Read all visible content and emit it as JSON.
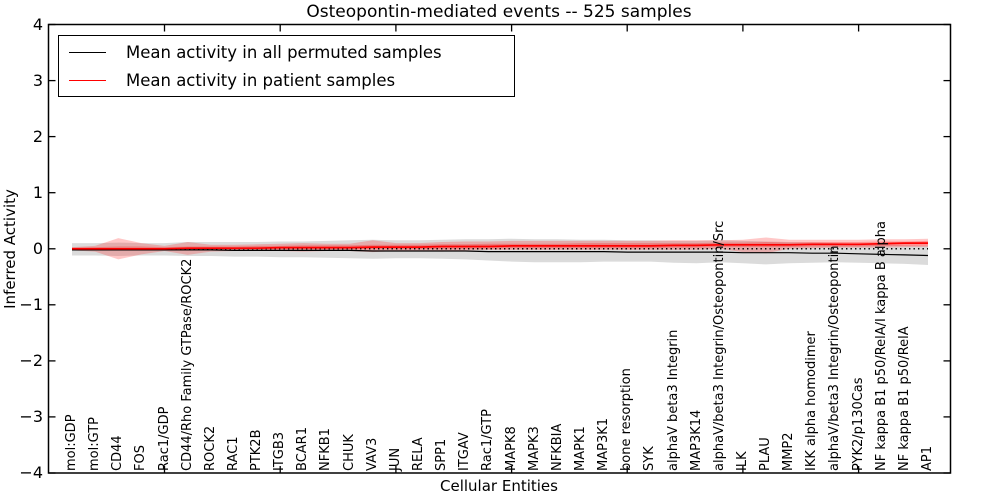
{
  "chart_data": {
    "type": "line",
    "title": "Osteopontin-mediated events -- 525 samples",
    "xlabel": "Cellular Entities",
    "ylabel": "Inferred Activity",
    "ylim": [
      -4,
      4
    ],
    "yticks": [
      4,
      3,
      2,
      1,
      0,
      -1,
      -2,
      -3,
      -4
    ],
    "ytick_labels": [
      "4",
      "3",
      "2",
      "1",
      "0",
      "−1",
      "−2",
      "−3",
      "−4"
    ],
    "xtick_positions": [
      5,
      10,
      15,
      20,
      25,
      30,
      35
    ],
    "grid": false,
    "legend_position": "upper left",
    "categories": [
      "mol:GDP",
      "mol:GTP",
      "CD44",
      "FOS",
      "Rac1/GDP",
      "CD44/Rho Family GTPase/ROCK2",
      "ROCK2",
      "RAC1",
      "PTK2B",
      "ITGB3",
      "BCAR1",
      "NFKB1",
      "CHUK",
      "VAV3",
      "JUN",
      "RELA",
      "SPP1",
      "ITGAV",
      "Rac1/GTP",
      "MAPK8",
      "MAPK3",
      "NFKBIA",
      "MAPK1",
      "MAP3K1",
      "bone resorption",
      "SYK",
      "alphaV beta3 Integrin",
      "MAP3K14",
      "alphaV/beta3 Integrin/Osteopontin/Src",
      "ILK",
      "PLAU",
      "MMP2",
      "IKK alpha homodimer",
      "alphaV/beta3 Integrin/Osteopontin",
      "PYK2/p130Cas",
      "NF kappa B1 p50/RelA/I kappa B alpha",
      "NF kappa B1 p50/RelA",
      "AP1"
    ],
    "baseline": {
      "value": 0,
      "style": "dotted",
      "color": "#000000"
    },
    "series": [
      {
        "name": "Mean activity in all permuted samples",
        "color": "#000000",
        "values": [
          -0.02,
          -0.02,
          -0.02,
          -0.02,
          -0.02,
          -0.02,
          -0.02,
          -0.03,
          -0.03,
          -0.03,
          -0.03,
          -0.03,
          -0.03,
          -0.04,
          -0.04,
          -0.04,
          -0.04,
          -0.04,
          -0.05,
          -0.05,
          -0.05,
          -0.05,
          -0.05,
          -0.05,
          -0.06,
          -0.06,
          -0.06,
          -0.06,
          -0.06,
          -0.07,
          -0.07,
          -0.07,
          -0.08,
          -0.08,
          -0.09,
          -0.1,
          -0.11,
          -0.12
        ]
      },
      {
        "name": "Mean activity in patient samples",
        "color": "#ff0000",
        "values": [
          0.0,
          0.0,
          0.0,
          0.0,
          0.0,
          0.01,
          0.01,
          0.01,
          0.01,
          0.02,
          0.02,
          0.02,
          0.02,
          0.03,
          0.03,
          0.03,
          0.04,
          0.04,
          0.04,
          0.05,
          0.05,
          0.05,
          0.05,
          0.05,
          0.05,
          0.05,
          0.06,
          0.06,
          0.07,
          0.07,
          0.07,
          0.07,
          0.08,
          0.08,
          0.08,
          0.09,
          0.1,
          0.1
        ]
      }
    ],
    "bands": [
      {
        "name": "permuted-samples-activity-range",
        "color": "rgba(0,0,0,0.14)",
        "lo": [
          -0.12,
          -0.12,
          -0.13,
          -0.12,
          -0.12,
          -0.13,
          -0.13,
          -0.14,
          -0.14,
          -0.15,
          -0.15,
          -0.16,
          -0.17,
          -0.18,
          -0.17,
          -0.17,
          -0.18,
          -0.19,
          -0.21,
          -0.23,
          -0.24,
          -0.24,
          -0.24,
          -0.23,
          -0.23,
          -0.23,
          -0.25,
          -0.26,
          -0.24,
          -0.26,
          -0.28,
          -0.26,
          -0.25,
          -0.24,
          -0.25,
          -0.26,
          -0.27,
          -0.29
        ],
        "hi": [
          0.1,
          0.1,
          0.11,
          0.1,
          0.1,
          0.12,
          0.12,
          0.12,
          0.12,
          0.13,
          0.13,
          0.14,
          0.15,
          0.16,
          0.15,
          0.15,
          0.16,
          0.17,
          0.17,
          0.18,
          0.17,
          0.17,
          0.16,
          0.16,
          0.15,
          0.15,
          0.14,
          0.14,
          0.15,
          0.14,
          0.13,
          0.12,
          0.11,
          0.1,
          0.09,
          0.08,
          0.06,
          0.05
        ]
      },
      {
        "name": "patient-samples-activity-range-outer",
        "color": "rgba(255,0,0,0.22)",
        "lo": [
          -0.03,
          -0.05,
          -0.19,
          -0.1,
          -0.04,
          -0.11,
          -0.05,
          -0.04,
          -0.04,
          -0.04,
          -0.05,
          -0.04,
          -0.04,
          -0.06,
          -0.04,
          -0.04,
          -0.05,
          -0.03,
          -0.02,
          -0.02,
          -0.02,
          -0.02,
          -0.02,
          -0.02,
          -0.02,
          -0.02,
          -0.02,
          -0.02,
          0.0,
          -0.06,
          -0.08,
          0.0,
          0.01,
          0.02,
          0.02,
          0.02,
          0.03,
          0.03
        ],
        "hi": [
          0.03,
          0.05,
          0.19,
          0.1,
          0.05,
          0.12,
          0.07,
          0.07,
          0.08,
          0.09,
          0.1,
          0.09,
          0.09,
          0.15,
          0.1,
          0.1,
          0.12,
          0.13,
          0.13,
          0.14,
          0.14,
          0.14,
          0.14,
          0.14,
          0.14,
          0.14,
          0.15,
          0.15,
          0.15,
          0.16,
          0.2,
          0.16,
          0.16,
          0.16,
          0.16,
          0.17,
          0.17,
          0.18
        ]
      },
      {
        "name": "patient-samples-activity-range-inner",
        "color": "rgba(255,0,0,0.26)",
        "lo": [
          -0.02,
          -0.02,
          -0.03,
          -0.03,
          -0.02,
          -0.02,
          -0.02,
          -0.02,
          -0.02,
          -0.01,
          -0.01,
          -0.01,
          -0.01,
          -0.01,
          -0.01,
          -0.01,
          0.0,
          0.0,
          0.0,
          0.01,
          0.01,
          0.01,
          0.01,
          0.01,
          0.01,
          0.01,
          0.02,
          0.02,
          0.03,
          0.03,
          0.03,
          0.03,
          0.04,
          0.04,
          0.04,
          0.05,
          0.05,
          0.05
        ],
        "hi": [
          0.02,
          0.03,
          0.04,
          0.04,
          0.03,
          0.04,
          0.04,
          0.04,
          0.05,
          0.05,
          0.06,
          0.06,
          0.06,
          0.07,
          0.07,
          0.07,
          0.08,
          0.08,
          0.09,
          0.09,
          0.09,
          0.09,
          0.1,
          0.1,
          0.1,
          0.1,
          0.1,
          0.1,
          0.11,
          0.11,
          0.12,
          0.11,
          0.12,
          0.12,
          0.12,
          0.13,
          0.13,
          0.14
        ]
      }
    ],
    "colors": {
      "axis": "#000000",
      "background": "#ffffff",
      "permuted_line": "#000000",
      "patient_line": "#ff0000"
    }
  }
}
